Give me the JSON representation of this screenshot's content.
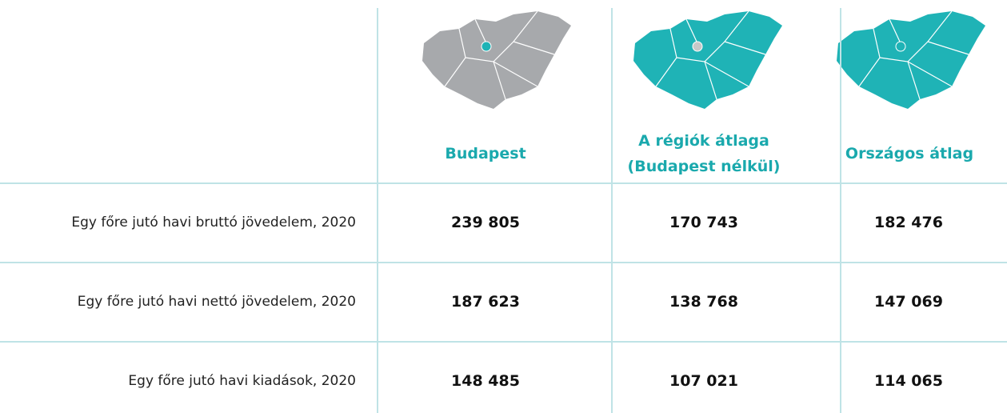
{
  "table": {
    "columns": [
      "Budapest",
      "A régiók átlaga (Budapest nélkül)",
      "Országos átlag"
    ],
    "rows": [
      {
        "label": "Egy főre jutó havi bruttó jövedelem, 2020",
        "values": [
          "239 805",
          "170 743",
          "182 476"
        ]
      },
      {
        "label": "Egy főre jutó havi nettó jövedelem, 2020",
        "values": [
          "187 623",
          "138 768",
          "147 069"
        ]
      },
      {
        "label": "Egy főre jutó havi kiadások, 2020",
        "values": [
          "148 485",
          "107 021",
          "114 065"
        ]
      }
    ]
  }
}
